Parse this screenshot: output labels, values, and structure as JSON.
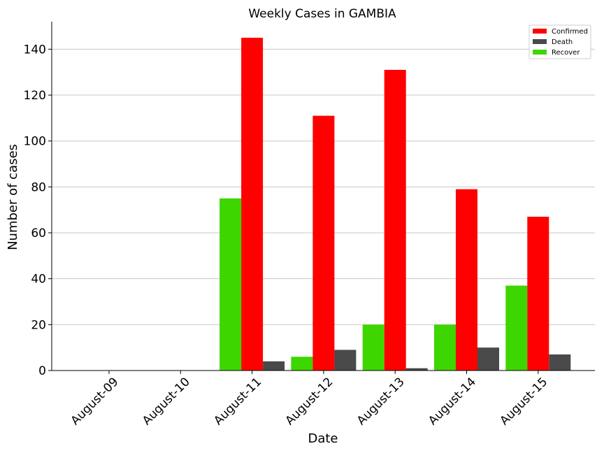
{
  "chart_data": {
    "type": "bar",
    "title": "Weekly Cases in GAMBIA",
    "xlabel": "Date",
    "ylabel": "Number of cases",
    "categories": [
      "August-09",
      "August-10",
      "August-11",
      "August-12",
      "August-13",
      "August-14",
      "August-15"
    ],
    "series": [
      {
        "name": "Recover",
        "color": "#3ed600",
        "values": [
          0,
          0,
          75,
          6,
          20,
          20,
          37
        ]
      },
      {
        "name": "Confirmed",
        "color": "#ff0000",
        "values": [
          0,
          0,
          145,
          111,
          131,
          79,
          67
        ]
      },
      {
        "name": "Death",
        "color": "#4a4a4a",
        "values": [
          0,
          0,
          4,
          9,
          1,
          10,
          7
        ]
      }
    ],
    "legend_order": [
      "Confirmed",
      "Death",
      "Recover"
    ],
    "legend_position": "top-right",
    "ylim": [
      0,
      152
    ],
    "yticks": [
      0,
      20,
      40,
      60,
      80,
      100,
      120,
      140
    ],
    "grid": "horizontal",
    "grid_color": "#c8c8c8"
  }
}
